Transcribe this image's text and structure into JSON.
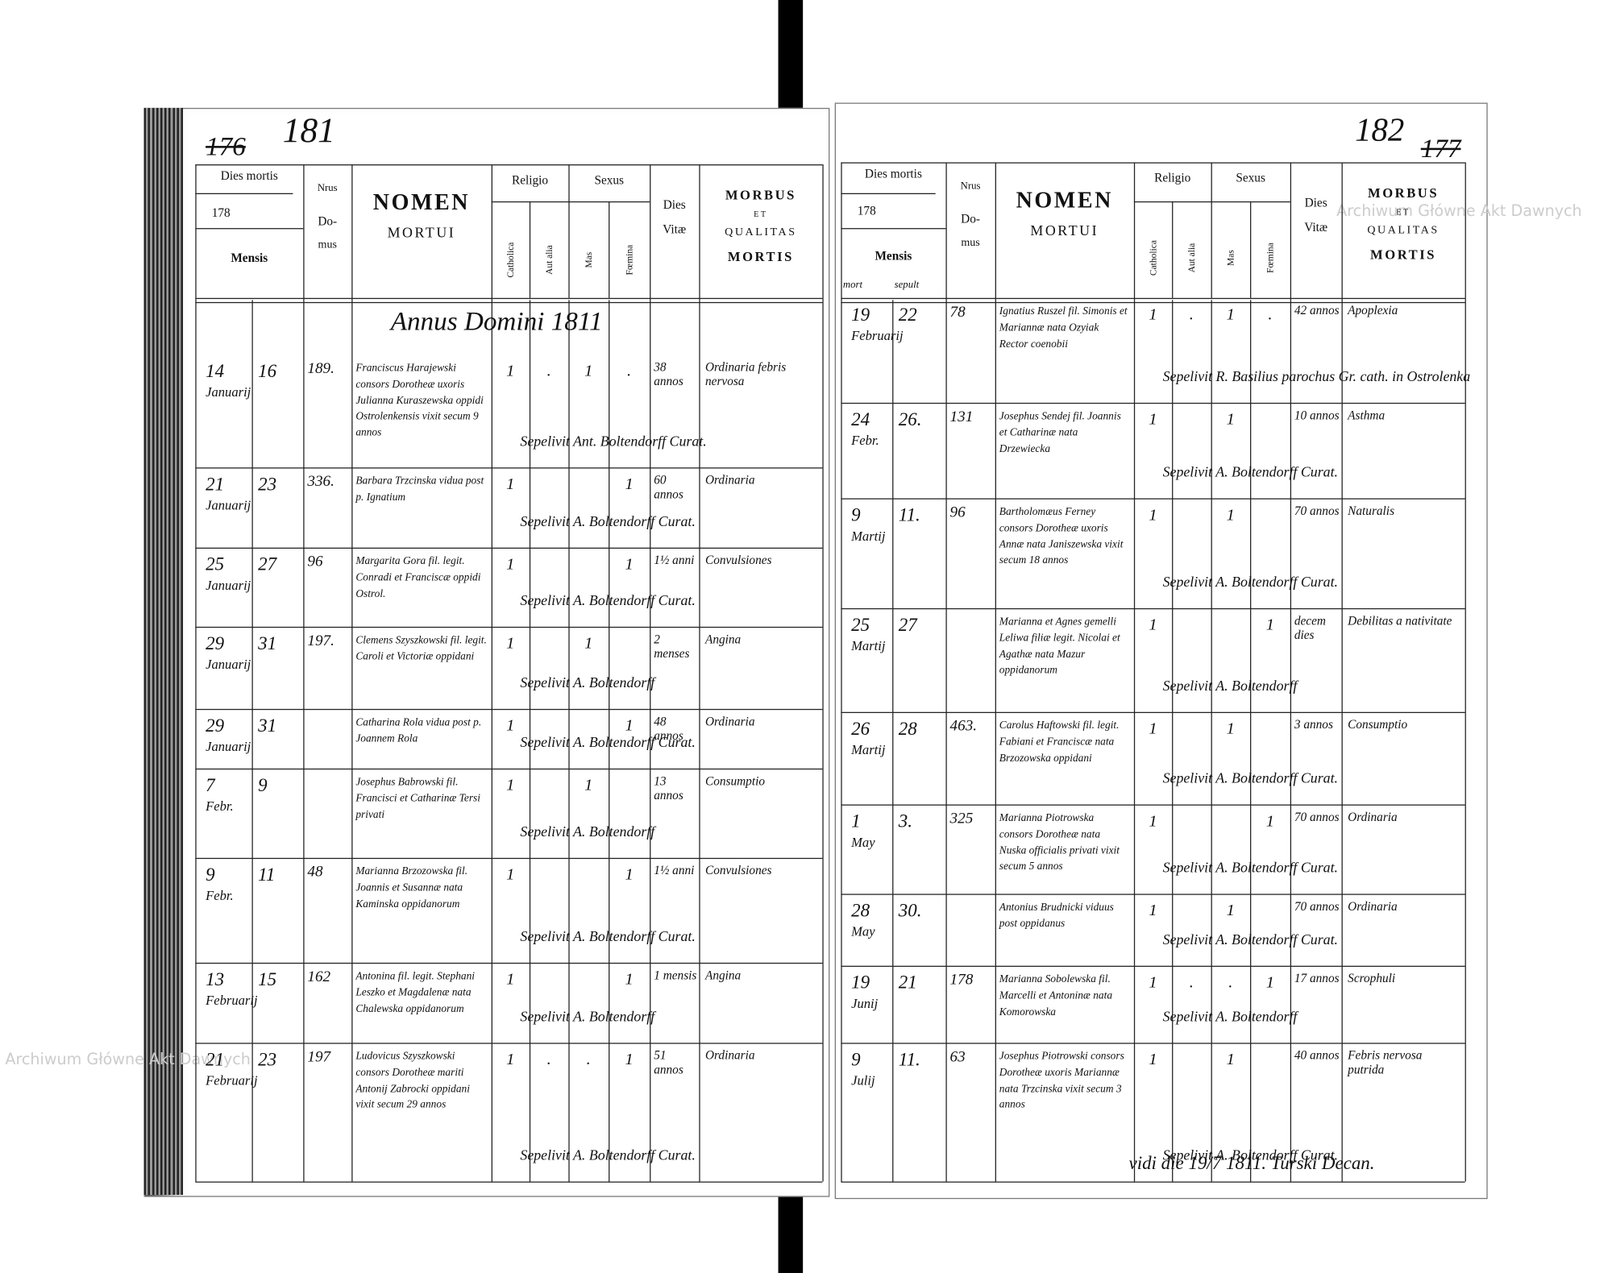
{
  "header": {
    "dies_mortis": "Dies mortis",
    "year_prefix": "178",
    "mensis": "Mensis",
    "nrus": "Nrus",
    "do": "Do-",
    "mus": "mus",
    "nomen": "NOMEN",
    "mortui": "MORTUI",
    "religio": "Religio",
    "sexus": "Sexus",
    "catholica": "Catholica",
    "aut_alia": "Aut alia",
    "mas": "Mas",
    "foemina": "Fœmina",
    "dies_vitae_1": "Dies",
    "dies_vitae_2": "Vitæ",
    "morbus": "MORBUS",
    "et": "ET",
    "qualitas": "QUALITAS",
    "mortis": "MORTIS"
  },
  "watermarks": [
    "Archiwum Główne Akt Dawnych",
    "Archiwum Główne Akt Dawnych"
  ],
  "left": {
    "page_old": "176",
    "page_new": "181",
    "annus": "Annus Domini 1811",
    "rows": [
      {
        "day": "14",
        "month": "Januarij",
        "burial": "16",
        "house": "189.",
        "name": "Franciscus Harajewski consors Dorotheæ uxoris Julianna Kuraszewska oppidi Ostrolenkensis vixit secum 9 annos",
        "catholica": "1",
        "aut_alia": ".",
        "mas": "1",
        "foemina": ".",
        "age": "38 annos",
        "morbus": "Ordinaria febris nervosa",
        "sepelivit": "Sepelivit Ant. Boltendorff Curat."
      },
      {
        "day": "21",
        "month": "Januarij",
        "burial": "23",
        "house": "336.",
        "name": "Barbara Trzcinska vidua post p. Ignatium",
        "catholica": "1",
        "foemina": "1",
        "age": "60 annos",
        "morbus": "Ordinaria",
        "sepelivit": "Sepelivit A. Boltendorff Curat."
      },
      {
        "day": "25",
        "month": "Januarij",
        "burial": "27",
        "house": "96",
        "name": "Margarita Gora fil. legit. Conradi et Franciscæ oppidi Ostrol.",
        "catholica": "1",
        "foemina": "1",
        "age": "1½ anni",
        "morbus": "Convulsiones",
        "sepelivit": "Sepelivit A. Boltendorff Curat."
      },
      {
        "day": "29",
        "month": "Januarij",
        "burial": "31",
        "house": "197.",
        "name": "Clemens Szyszkowski fil. legit. Caroli et Victoriæ oppidani",
        "catholica": "1",
        "mas": "1",
        "age": "2 menses",
        "morbus": "Angina",
        "sepelivit": "Sepelivit A. Boltendorff"
      },
      {
        "day": "29",
        "month": "Januarij",
        "burial": "31",
        "name": "Catharina Rola vidua post p. Joannem Rola",
        "catholica": "1",
        "foemina": "1",
        "age": "48 annos",
        "morbus": "Ordinaria",
        "sepelivit": "Sepelivit A. Boltendorff Curat."
      },
      {
        "day": "7",
        "month": "Febr.",
        "burial": "9",
        "name": "Josephus Babrowski fil. Francisci et Catharinæ Tersi privati",
        "catholica": "1",
        "mas": "1",
        "age": "13 annos",
        "morbus": "Consumptio",
        "sepelivit": "Sepelivit A. Boltendorff"
      },
      {
        "day": "9",
        "month": "Febr.",
        "burial": "11",
        "house": "48",
        "name": "Marianna Brzozowska fil. Joannis et Susannæ nata Kaminska oppidanorum",
        "catholica": "1",
        "foemina": "1",
        "age": "1½ anni",
        "morbus": "Convulsiones",
        "sepelivit": "Sepelivit A. Boltendorff Curat."
      },
      {
        "day": "13",
        "month": "Februarij",
        "burial": "15",
        "house": "162",
        "name": "Antonina fil. legit. Stephani Leszko et Magdalenæ nata Chalewska oppidanorum",
        "catholica": "1",
        "foemina": "1",
        "age": "1 mensis",
        "morbus": "Angina",
        "sepelivit": "Sepelivit A. Boltendorff"
      },
      {
        "day": "21",
        "month": "Februarij",
        "burial": "23",
        "house": "197",
        "name": "Ludovicus Szyszkowski consors Dorotheæ mariti Antonij Zabrocki oppidani vixit secum 29 annos",
        "catholica": "1",
        "aut_alia": ".",
        "mas": ".",
        "foemina": "1",
        "age": "51 annos",
        "morbus": "Ordinaria",
        "sepelivit": "Sepelivit A. Boltendorff Curat."
      }
    ]
  },
  "right": {
    "page_new": "182",
    "page_old": "177",
    "mort": "mort",
    "sepult": "sepult",
    "rows": [
      {
        "day": "19",
        "month": "Februarij",
        "burial": "22",
        "house": "78",
        "name": "Ignatius Ruszel fil. Simonis et Mariannæ nata Ozyiak Rector coenobii",
        "catholica": "1",
        "aut_alia": ".",
        "mas": "1",
        "foemina": ".",
        "age": "42 annos",
        "morbus": "Apoplexia",
        "sepelivit": "Sepelivit R. Basilius parochus Gr. cath. in Ostrolenka"
      },
      {
        "day": "24",
        "month": "Febr.",
        "burial": "26.",
        "house": "131",
        "name": "Josephus Sendej fil. Joannis et Catharinæ nata Drzewiecka",
        "catholica": "1",
        "mas": "1",
        "age": "10 annos",
        "morbus": "Asthma",
        "sepelivit": "Sepelivit A. Boltendorff Curat."
      },
      {
        "day": "9",
        "month": "Martij",
        "burial": "11.",
        "house": "96",
        "name": "Bartholomæus Ferney consors Dorotheæ uxoris Annæ nata Janiszewska vixit secum 18 annos",
        "catholica": "1",
        "mas": "1",
        "age": "70 annos",
        "morbus": "Naturalis",
        "sepelivit": "Sepelivit A. Boltendorff Curat."
      },
      {
        "day": "25",
        "month": "Martij",
        "burial": "27",
        "name": "Marianna et Agnes gemelli Leliwa filiæ legit. Nicolai et Agathæ nata Mazur oppidanorum",
        "catholica": "1",
        "foemina": "1",
        "age": "decem dies",
        "morbus": "Debilitas a nativitate",
        "sepelivit": "Sepelivit A. Boltendorff"
      },
      {
        "day": "26",
        "month": "Martij",
        "burial": "28",
        "house": "463.",
        "name": "Carolus Haftowski fil. legit. Fabiani et Franciscæ nata Brzozowska oppidani",
        "catholica": "1",
        "mas": "1",
        "age": "3 annos",
        "morbus": "Consumptio",
        "sepelivit": "Sepelivit A. Boltendorff Curat."
      },
      {
        "day": "1",
        "month": "May",
        "burial": "3.",
        "house": "325",
        "name": "Marianna Piotrowska consors Dorotheæ nata Nuska officialis privati vixit secum 5 annos",
        "catholica": "1",
        "foemina": "1",
        "age": "70 annos",
        "morbus": "Ordinaria",
        "sepelivit": "Sepelivit A. Boltendorff Curat."
      },
      {
        "day": "28",
        "month": "May",
        "burial": "30.",
        "name": "Antonius Brudnicki viduus post oppidanus",
        "catholica": "1",
        "mas": "1",
        "age": "70 annos",
        "morbus": "Ordinaria",
        "sepelivit": "Sepelivit A. Boltendorff Curat."
      },
      {
        "day": "19",
        "month": "Junij",
        "burial": "21",
        "house": "178",
        "name": "Marianna Sobolewska fil. Marcelli et Antoninæ nata Komorowska",
        "catholica": "1",
        "aut_alia": ".",
        "mas": ".",
        "foemina": "1",
        "age": "17 annos",
        "morbus": "Scrophuli",
        "sepelivit": "Sepelivit A. Boltendorff"
      },
      {
        "day": "9",
        "month": "Julij",
        "burial": "11.",
        "house": "63",
        "name": "Josephus Piotrowski consors Dorotheæ uxoris Mariannæ nata Trzcinska vixit secum 3 annos",
        "catholica": "1",
        "mas": "1",
        "age": "40 annos",
        "morbus": "Febris nervosa putrida",
        "sepelivit": "Sepelivit A. Boltendorff Curat."
      }
    ],
    "visa": "vidi die 19/7 1811. Turski Decan."
  }
}
